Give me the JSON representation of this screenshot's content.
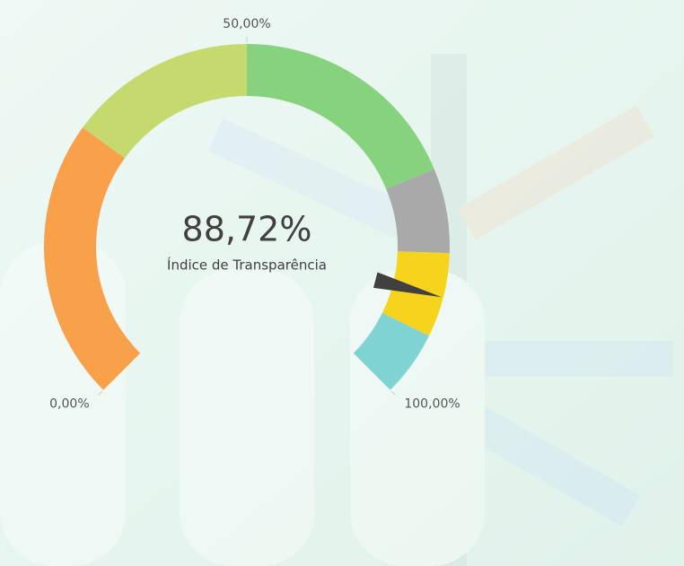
{
  "chart_data": {
    "type": "gauge",
    "value": 88.72,
    "value_label": "88,72%",
    "label": "Índice de Transparência",
    "ylim": [
      0,
      100
    ],
    "yticks": [
      {
        "value": 0,
        "label": "0,00%"
      },
      {
        "value": 50,
        "label": "50,00%"
      },
      {
        "value": 100,
        "label": "100,00%"
      }
    ],
    "bands": [
      {
        "from": 0,
        "to": 30,
        "color": "#f9a04a"
      },
      {
        "from": 30,
        "to": 50,
        "color": "#c5d96e"
      },
      {
        "from": 50,
        "to": 75,
        "color": "#86d27f"
      },
      {
        "from": 75,
        "to": 84,
        "color": "#a9a9a9"
      },
      {
        "from": 84,
        "to": 93,
        "color": "#f6d31d"
      },
      {
        "from": 93,
        "to": 100,
        "color": "#7fd3d3"
      }
    ],
    "needle_color": "#404040"
  }
}
